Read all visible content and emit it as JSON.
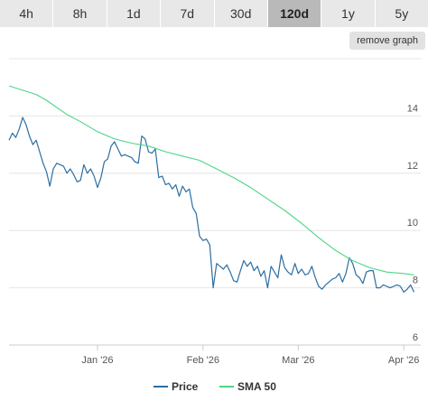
{
  "tabs": [
    {
      "label": "4h",
      "active": false
    },
    {
      "label": "8h",
      "active": false
    },
    {
      "label": "1d",
      "active": false
    },
    {
      "label": "7d",
      "active": false
    },
    {
      "label": "30d",
      "active": false
    },
    {
      "label": "120d",
      "active": true
    },
    {
      "label": "1y",
      "active": false
    },
    {
      "label": "5y",
      "active": false
    }
  ],
  "remove_graph_label": "remove graph",
  "colors": {
    "price": "#2b6ea3",
    "sma": "#4cd585",
    "grid": "#e6e6e6",
    "axis": "#cccccc"
  },
  "chart_data": {
    "type": "line",
    "x_start": "2025-12-06",
    "x_end": "2026-04-06",
    "ylim": [
      6,
      16
    ],
    "y_ticks": [
      6,
      8,
      10,
      12,
      14
    ],
    "x_ticks": [
      {
        "date": "2026-01-01",
        "label": "Jan '26"
      },
      {
        "date": "2026-02-01",
        "label": "Feb '26"
      },
      {
        "date": "2026-03-01",
        "label": "Mar '26"
      },
      {
        "date": "2026-04-01",
        "label": "Apr '26"
      }
    ],
    "grid": true,
    "legend_position": "bottom",
    "series": [
      {
        "name": "Price",
        "color": "#2b6ea3",
        "points": [
          [
            "2025-12-06",
            13.15
          ],
          [
            "2025-12-07",
            13.4
          ],
          [
            "2025-12-08",
            13.25
          ],
          [
            "2025-12-09",
            13.55
          ],
          [
            "2025-12-10",
            13.95
          ],
          [
            "2025-12-11",
            13.7
          ],
          [
            "2025-12-12",
            13.3
          ],
          [
            "2025-12-13",
            13.0
          ],
          [
            "2025-12-14",
            13.15
          ],
          [
            "2025-12-15",
            12.75
          ],
          [
            "2025-12-16",
            12.35
          ],
          [
            "2025-12-17",
            12.05
          ],
          [
            "2025-12-18",
            11.55
          ],
          [
            "2025-12-19",
            12.15
          ],
          [
            "2025-12-20",
            12.35
          ],
          [
            "2025-12-21",
            12.3
          ],
          [
            "2025-12-22",
            12.25
          ],
          [
            "2025-12-23",
            12.0
          ],
          [
            "2025-12-24",
            12.15
          ],
          [
            "2025-12-25",
            11.95
          ],
          [
            "2025-12-26",
            11.7
          ],
          [
            "2025-12-27",
            11.75
          ],
          [
            "2025-12-28",
            12.3
          ],
          [
            "2025-12-29",
            12.0
          ],
          [
            "2025-12-30",
            12.15
          ],
          [
            "2025-12-31",
            11.9
          ],
          [
            "2026-01-01",
            11.5
          ],
          [
            "2026-01-02",
            11.85
          ],
          [
            "2026-01-03",
            12.4
          ],
          [
            "2026-01-04",
            12.5
          ],
          [
            "2026-01-05",
            12.95
          ],
          [
            "2026-01-06",
            13.1
          ],
          [
            "2026-01-07",
            12.85
          ],
          [
            "2026-01-08",
            12.6
          ],
          [
            "2026-01-09",
            12.65
          ],
          [
            "2026-01-10",
            12.6
          ],
          [
            "2026-01-11",
            12.55
          ],
          [
            "2026-01-12",
            12.4
          ],
          [
            "2026-01-13",
            12.35
          ],
          [
            "2026-01-14",
            13.3
          ],
          [
            "2026-01-15",
            13.2
          ],
          [
            "2026-01-16",
            12.75
          ],
          [
            "2026-01-17",
            12.7
          ],
          [
            "2026-01-18",
            12.85
          ],
          [
            "2026-01-19",
            11.85
          ],
          [
            "2026-01-20",
            11.9
          ],
          [
            "2026-01-21",
            11.6
          ],
          [
            "2026-01-22",
            11.65
          ],
          [
            "2026-01-23",
            11.45
          ],
          [
            "2026-01-24",
            11.6
          ],
          [
            "2026-01-25",
            11.2
          ],
          [
            "2026-01-26",
            11.55
          ],
          [
            "2026-01-27",
            11.35
          ],
          [
            "2026-01-28",
            11.45
          ],
          [
            "2026-01-29",
            10.8
          ],
          [
            "2026-01-30",
            10.6
          ],
          [
            "2026-01-31",
            9.8
          ],
          [
            "2026-02-01",
            9.65
          ],
          [
            "2026-02-02",
            9.7
          ],
          [
            "2026-02-03",
            9.5
          ],
          [
            "2026-02-04",
            8.0
          ],
          [
            "2026-02-05",
            8.85
          ],
          [
            "2026-02-06",
            8.75
          ],
          [
            "2026-02-07",
            8.65
          ],
          [
            "2026-02-08",
            8.8
          ],
          [
            "2026-02-09",
            8.55
          ],
          [
            "2026-02-10",
            8.25
          ],
          [
            "2026-02-11",
            8.2
          ],
          [
            "2026-02-12",
            8.6
          ],
          [
            "2026-02-13",
            8.95
          ],
          [
            "2026-02-14",
            8.75
          ],
          [
            "2026-02-15",
            8.9
          ],
          [
            "2026-02-16",
            8.6
          ],
          [
            "2026-02-17",
            8.75
          ],
          [
            "2026-02-18",
            8.4
          ],
          [
            "2026-02-19",
            8.6
          ],
          [
            "2026-02-20",
            8.0
          ],
          [
            "2026-02-21",
            8.75
          ],
          [
            "2026-02-22",
            8.55
          ],
          [
            "2026-02-23",
            8.35
          ],
          [
            "2026-02-24",
            9.15
          ],
          [
            "2026-02-25",
            8.7
          ],
          [
            "2026-02-26",
            8.55
          ],
          [
            "2026-02-27",
            8.45
          ],
          [
            "2026-02-28",
            8.85
          ],
          [
            "2026-03-01",
            8.5
          ],
          [
            "2026-03-02",
            8.65
          ],
          [
            "2026-03-03",
            8.45
          ],
          [
            "2026-03-04",
            8.5
          ],
          [
            "2026-03-05",
            8.75
          ],
          [
            "2026-03-06",
            8.35
          ],
          [
            "2026-03-07",
            8.05
          ],
          [
            "2026-03-08",
            7.95
          ],
          [
            "2026-03-09",
            8.1
          ],
          [
            "2026-03-10",
            8.2
          ],
          [
            "2026-03-11",
            8.3
          ],
          [
            "2026-03-12",
            8.35
          ],
          [
            "2026-03-13",
            8.5
          ],
          [
            "2026-03-14",
            8.2
          ],
          [
            "2026-03-15",
            8.5
          ],
          [
            "2026-03-16",
            9.05
          ],
          [
            "2026-03-17",
            8.85
          ],
          [
            "2026-03-18",
            8.45
          ],
          [
            "2026-03-19",
            8.35
          ],
          [
            "2026-03-20",
            8.15
          ],
          [
            "2026-03-21",
            8.55
          ],
          [
            "2026-03-22",
            8.6
          ],
          [
            "2026-03-23",
            8.6
          ],
          [
            "2026-03-24",
            8.0
          ],
          [
            "2026-03-25",
            8.0
          ],
          [
            "2026-03-26",
            8.1
          ],
          [
            "2026-03-27",
            8.05
          ],
          [
            "2026-03-28",
            8.0
          ],
          [
            "2026-03-29",
            8.05
          ],
          [
            "2026-03-30",
            8.1
          ],
          [
            "2026-03-31",
            8.05
          ],
          [
            "2026-04-01",
            7.85
          ],
          [
            "2026-04-02",
            7.95
          ],
          [
            "2026-04-03",
            8.1
          ],
          [
            "2026-04-04",
            7.85
          ]
        ]
      },
      {
        "name": "SMA 50",
        "color": "#4cd585",
        "points": [
          [
            "2025-12-06",
            15.05
          ],
          [
            "2025-12-10",
            14.9
          ],
          [
            "2025-12-14",
            14.75
          ],
          [
            "2025-12-17",
            14.55
          ],
          [
            "2025-12-20",
            14.3
          ],
          [
            "2025-12-23",
            14.05
          ],
          [
            "2025-12-27",
            13.8
          ],
          [
            "2026-01-01",
            13.45
          ],
          [
            "2026-01-06",
            13.2
          ],
          [
            "2026-01-11",
            13.05
          ],
          [
            "2026-01-16",
            12.95
          ],
          [
            "2026-01-21",
            12.75
          ],
          [
            "2026-01-26",
            12.6
          ],
          [
            "2026-01-31",
            12.45
          ],
          [
            "2026-02-05",
            12.15
          ],
          [
            "2026-02-10",
            11.85
          ],
          [
            "2026-02-15",
            11.5
          ],
          [
            "2026-02-20",
            11.1
          ],
          [
            "2026-02-25",
            10.7
          ],
          [
            "2026-03-02",
            10.25
          ],
          [
            "2026-03-07",
            9.75
          ],
          [
            "2026-03-12",
            9.3
          ],
          [
            "2026-03-17",
            8.95
          ],
          [
            "2026-03-22",
            8.7
          ],
          [
            "2026-03-27",
            8.55
          ],
          [
            "2026-04-01",
            8.5
          ],
          [
            "2026-04-04",
            8.45
          ]
        ]
      }
    ]
  }
}
